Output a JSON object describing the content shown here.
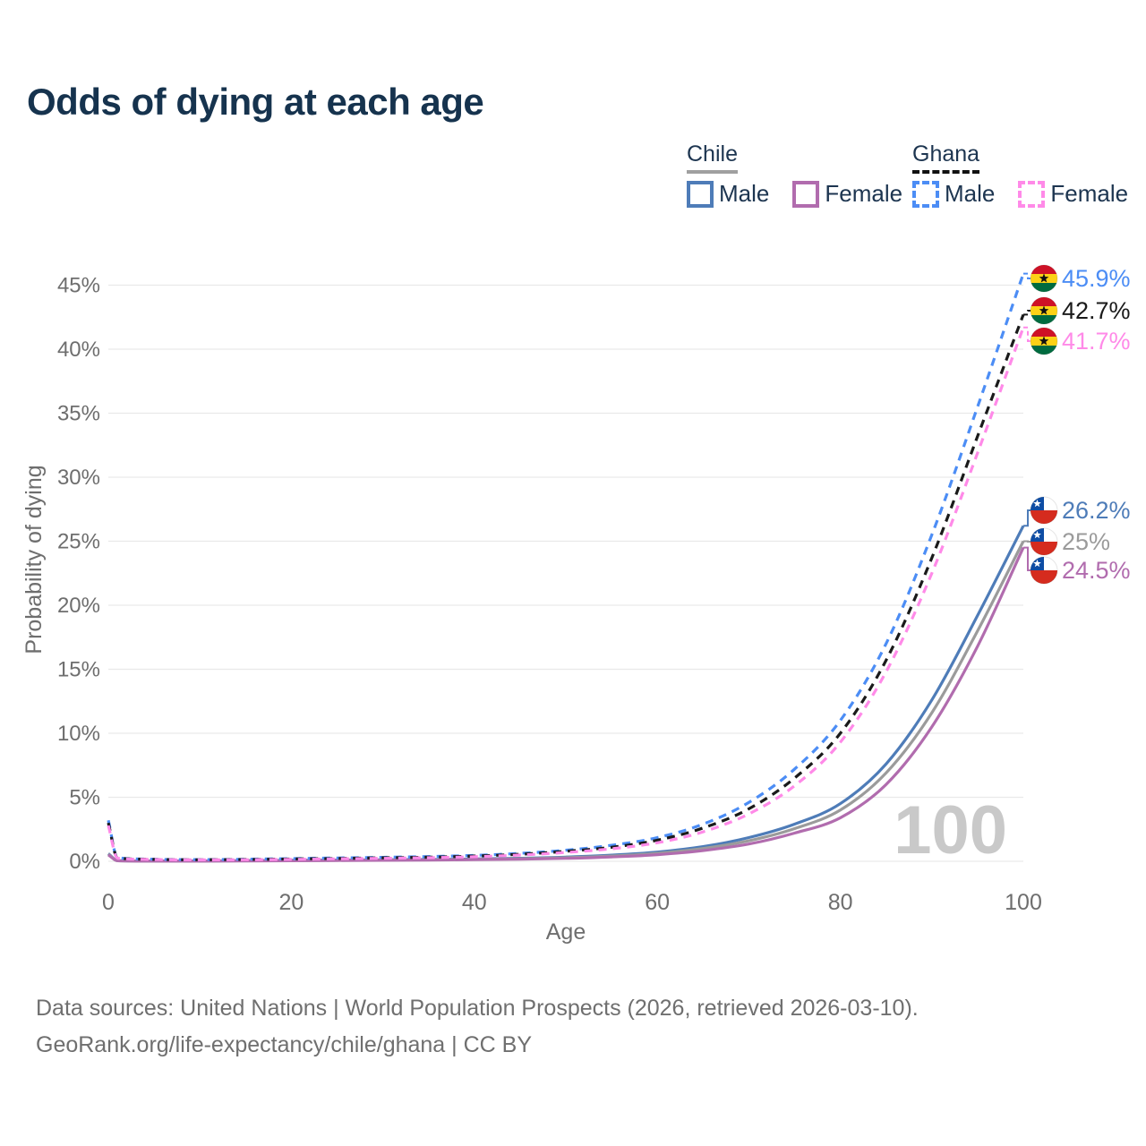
{
  "title": "Odds of dying at each age",
  "legend": {
    "chile": {
      "name": "Chile",
      "male": "Male",
      "female": "Female"
    },
    "ghana": {
      "name": "Ghana",
      "male": "Male",
      "female": "Female"
    }
  },
  "watermark": "100",
  "footer": {
    "line1": "Data sources: United Nations | World Population Prospects (2026, retrieved 2026-03-10).",
    "line2": "GeoRank.org/life-expectancy/chile/ghana | CC BY"
  },
  "colors": {
    "chile_male": "#4e7cb8",
    "chile_total": "#9b9b9b",
    "chile_female": "#b16cae",
    "ghana_male": "#4c8df5",
    "ghana_total": "#1a1a1a",
    "ghana_female": "#ff8ae8",
    "axis_text": "#6e6e6e",
    "grid": "#e9e9e9",
    "watermark": "#c9c9c9",
    "title_text": "#16334e",
    "legend_text": "#1d3550",
    "chile_underline": "#a0a0a0",
    "ghana_underline": "#111111"
  },
  "chart_data": {
    "type": "line",
    "title": "Odds of dying at each age",
    "xlabel": "Age",
    "ylabel": "Probability of dying",
    "xlim": [
      0,
      100
    ],
    "ylim_pct": [
      0,
      47
    ],
    "x_ticks": [
      0,
      20,
      40,
      60,
      80,
      100
    ],
    "y_ticks_pct": [
      0,
      5,
      10,
      15,
      20,
      25,
      30,
      35,
      40,
      45
    ],
    "grid": "horizontal",
    "legend_position": "top-right",
    "ages": [
      0,
      1,
      5,
      10,
      15,
      20,
      25,
      30,
      35,
      40,
      45,
      50,
      55,
      60,
      65,
      70,
      75,
      80,
      85,
      90,
      95,
      100
    ],
    "series": [
      {
        "key": "chile_male",
        "country": "Chile",
        "sex": "Male",
        "line_style": "solid",
        "end_label": "26.2%",
        "values_pct": [
          0.6,
          0.05,
          0.02,
          0.02,
          0.05,
          0.08,
          0.1,
          0.12,
          0.14,
          0.18,
          0.24,
          0.33,
          0.48,
          0.72,
          1.15,
          1.85,
          2.9,
          4.5,
          7.6,
          12.6,
          19.2,
          26.2
        ]
      },
      {
        "key": "chile_total",
        "country": "Chile",
        "sex": "Both",
        "line_style": "solid",
        "end_label": "25%",
        "values_pct": [
          0.55,
          0.045,
          0.02,
          0.02,
          0.04,
          0.06,
          0.08,
          0.1,
          0.12,
          0.15,
          0.2,
          0.28,
          0.41,
          0.62,
          1.0,
          1.6,
          2.55,
          4.0,
          6.9,
          11.6,
          18.0,
          25.0
        ]
      },
      {
        "key": "chile_female",
        "country": "Chile",
        "sex": "Female",
        "line_style": "solid",
        "end_label": "24.5%",
        "values_pct": [
          0.5,
          0.04,
          0.015,
          0.015,
          0.03,
          0.045,
          0.06,
          0.08,
          0.1,
          0.13,
          0.17,
          0.23,
          0.34,
          0.52,
          0.84,
          1.35,
          2.2,
          3.4,
          6.0,
          10.5,
          16.8,
          24.5
        ]
      },
      {
        "key": "ghana_male",
        "country": "Ghana",
        "sex": "Male",
        "line_style": "dashed",
        "end_label": "45.9%",
        "values_pct": [
          3.2,
          0.28,
          0.16,
          0.13,
          0.16,
          0.21,
          0.26,
          0.31,
          0.37,
          0.46,
          0.62,
          0.87,
          1.25,
          1.85,
          2.9,
          4.6,
          7.2,
          11.0,
          17.0,
          25.5,
          35.5,
          45.9
        ]
      },
      {
        "key": "ghana_total",
        "country": "Ghana",
        "sex": "Both",
        "line_style": "dashed",
        "end_label": "42.7%",
        "values_pct": [
          3.0,
          0.26,
          0.15,
          0.12,
          0.14,
          0.18,
          0.22,
          0.27,
          0.32,
          0.41,
          0.55,
          0.78,
          1.1,
          1.65,
          2.6,
          4.1,
          6.5,
          10.0,
          15.7,
          23.7,
          33.2,
          42.7
        ]
      },
      {
        "key": "ghana_female",
        "country": "Ghana",
        "sex": "Female",
        "line_style": "dashed",
        "end_label": "41.7%",
        "values_pct": [
          2.8,
          0.24,
          0.14,
          0.11,
          0.12,
          0.15,
          0.19,
          0.23,
          0.28,
          0.36,
          0.49,
          0.69,
          0.98,
          1.45,
          2.3,
          3.7,
          5.9,
          9.3,
          14.8,
          22.5,
          31.9,
          41.7
        ]
      }
    ]
  }
}
